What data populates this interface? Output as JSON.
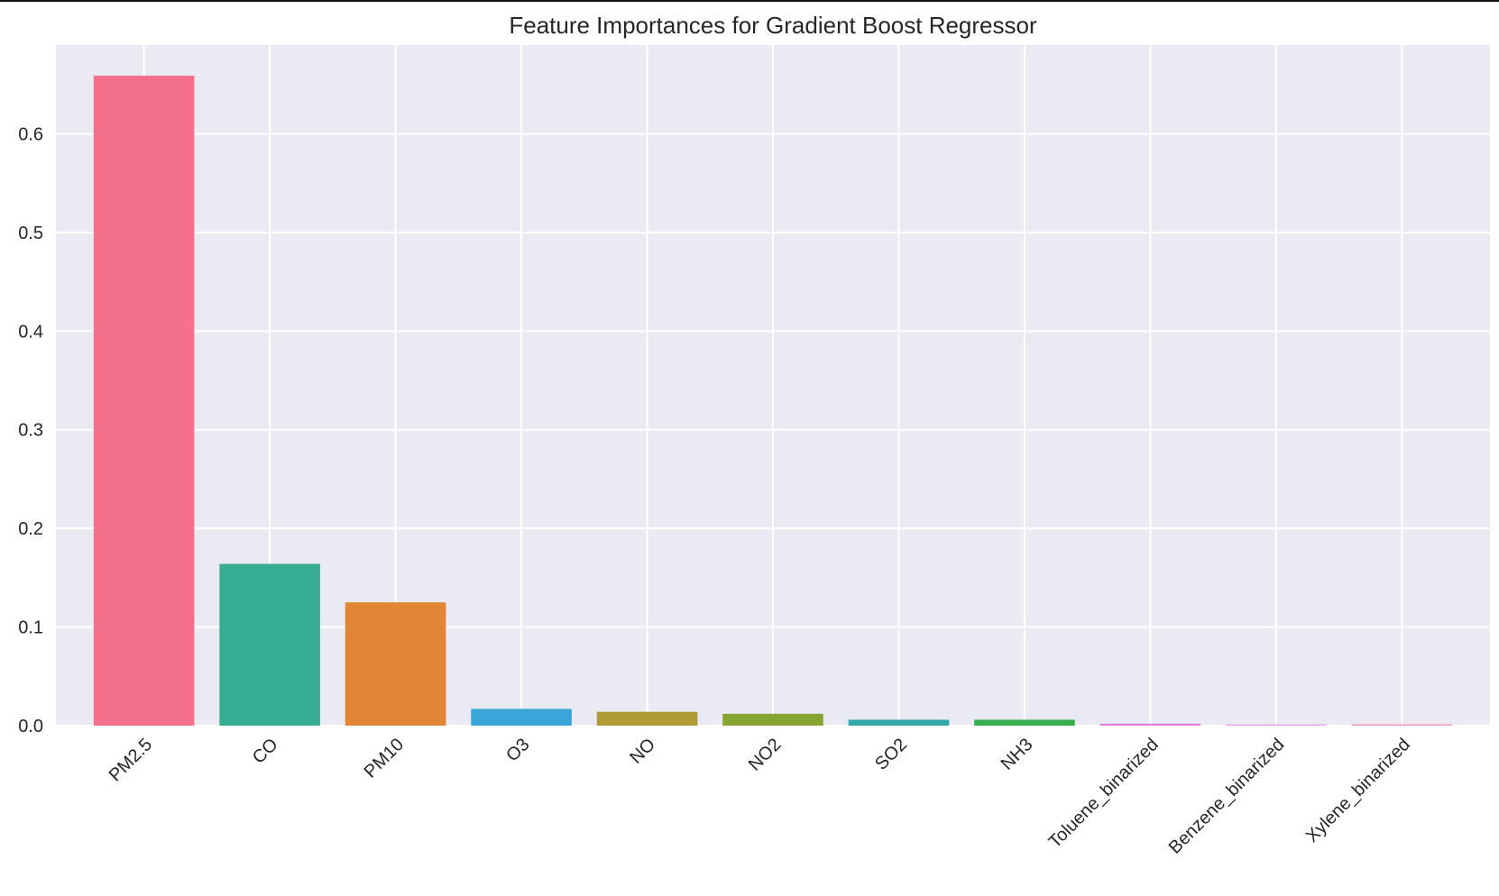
{
  "chart_data": {
    "type": "bar",
    "title": "Feature Importances for Gradient Boost Regressor",
    "xlabel": "",
    "ylabel": "",
    "categories": [
      "PM2.5",
      "CO",
      "PM10",
      "O3",
      "NO",
      "NO2",
      "SO2",
      "NH3",
      "Toluene_binarized",
      "Benzene_binarized",
      "Xylene_binarized"
    ],
    "values": [
      0.659,
      0.164,
      0.125,
      0.017,
      0.014,
      0.012,
      0.006,
      0.006,
      0.002,
      0.0005,
      0.0005
    ],
    "colors": [
      "#f5708a",
      "#37ae93",
      "#e08634",
      "#3aa6d8",
      "#b09a33",
      "#86a530",
      "#33a9a9",
      "#35b04e",
      "#e27ee5",
      "#f0a5ee",
      "#f59ac0"
    ],
    "ylim": [
      0,
      0.69
    ],
    "yticks": [
      0.0,
      0.1,
      0.2,
      0.3,
      0.4,
      0.5,
      0.6
    ],
    "ytick_labels": [
      "0.0",
      "0.1",
      "0.2",
      "0.3",
      "0.4",
      "0.5",
      "0.6"
    ],
    "grid": true,
    "background": "#eaeaf2",
    "grid_color": "#ffffff"
  }
}
